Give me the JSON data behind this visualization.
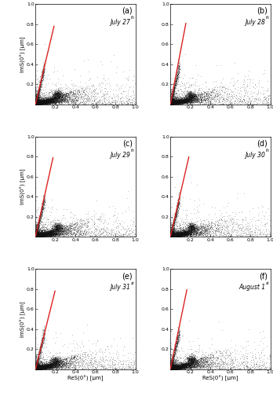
{
  "panels": [
    {
      "label": "(a)",
      "date": "July 27",
      "date_superscript": "th"
    },
    {
      "label": "(b)",
      "date": "July 28",
      "date_superscript": "th"
    },
    {
      "label": "(c)",
      "date": "July 29",
      "date_superscript": "th"
    },
    {
      "label": "(d)",
      "date": "July 30",
      "date_superscript": "th"
    },
    {
      "label": "(e)",
      "date": "July 31",
      "date_superscript": "st"
    },
    {
      "label": "(f)",
      "date": "August 1",
      "date_superscript": "st"
    }
  ],
  "xlim": [
    0.0,
    1.0
  ],
  "ylim": [
    0.0,
    1.0
  ],
  "xticks": [
    0.2,
    0.4,
    0.6,
    0.8,
    1.0
  ],
  "yticks": [
    0.2,
    0.4,
    0.6,
    0.8,
    1.0
  ],
  "xlabel": "ReS(0°) [μm]",
  "ylabel": "ImS(0°) [μm]",
  "red_line_color": "#dd2222",
  "scatter_color": "#111111",
  "background_color": "#ffffff",
  "scatter_alpha": 0.18,
  "scatter_size": 0.5,
  "red_line_slopes": [
    4.2,
    5.2,
    4.5,
    4.3,
    4.0,
    4.8
  ],
  "red_line_x_end": [
    0.185,
    0.155,
    0.175,
    0.185,
    0.195,
    0.165
  ],
  "n_points": [
    9000,
    8000,
    8500,
    8000,
    7500,
    8000
  ],
  "clump_x": [
    0.22,
    0.2,
    0.22,
    0.21,
    0.2,
    0.21
  ],
  "clump_y": [
    0.1,
    0.09,
    0.1,
    0.1,
    0.09,
    0.1
  ]
}
